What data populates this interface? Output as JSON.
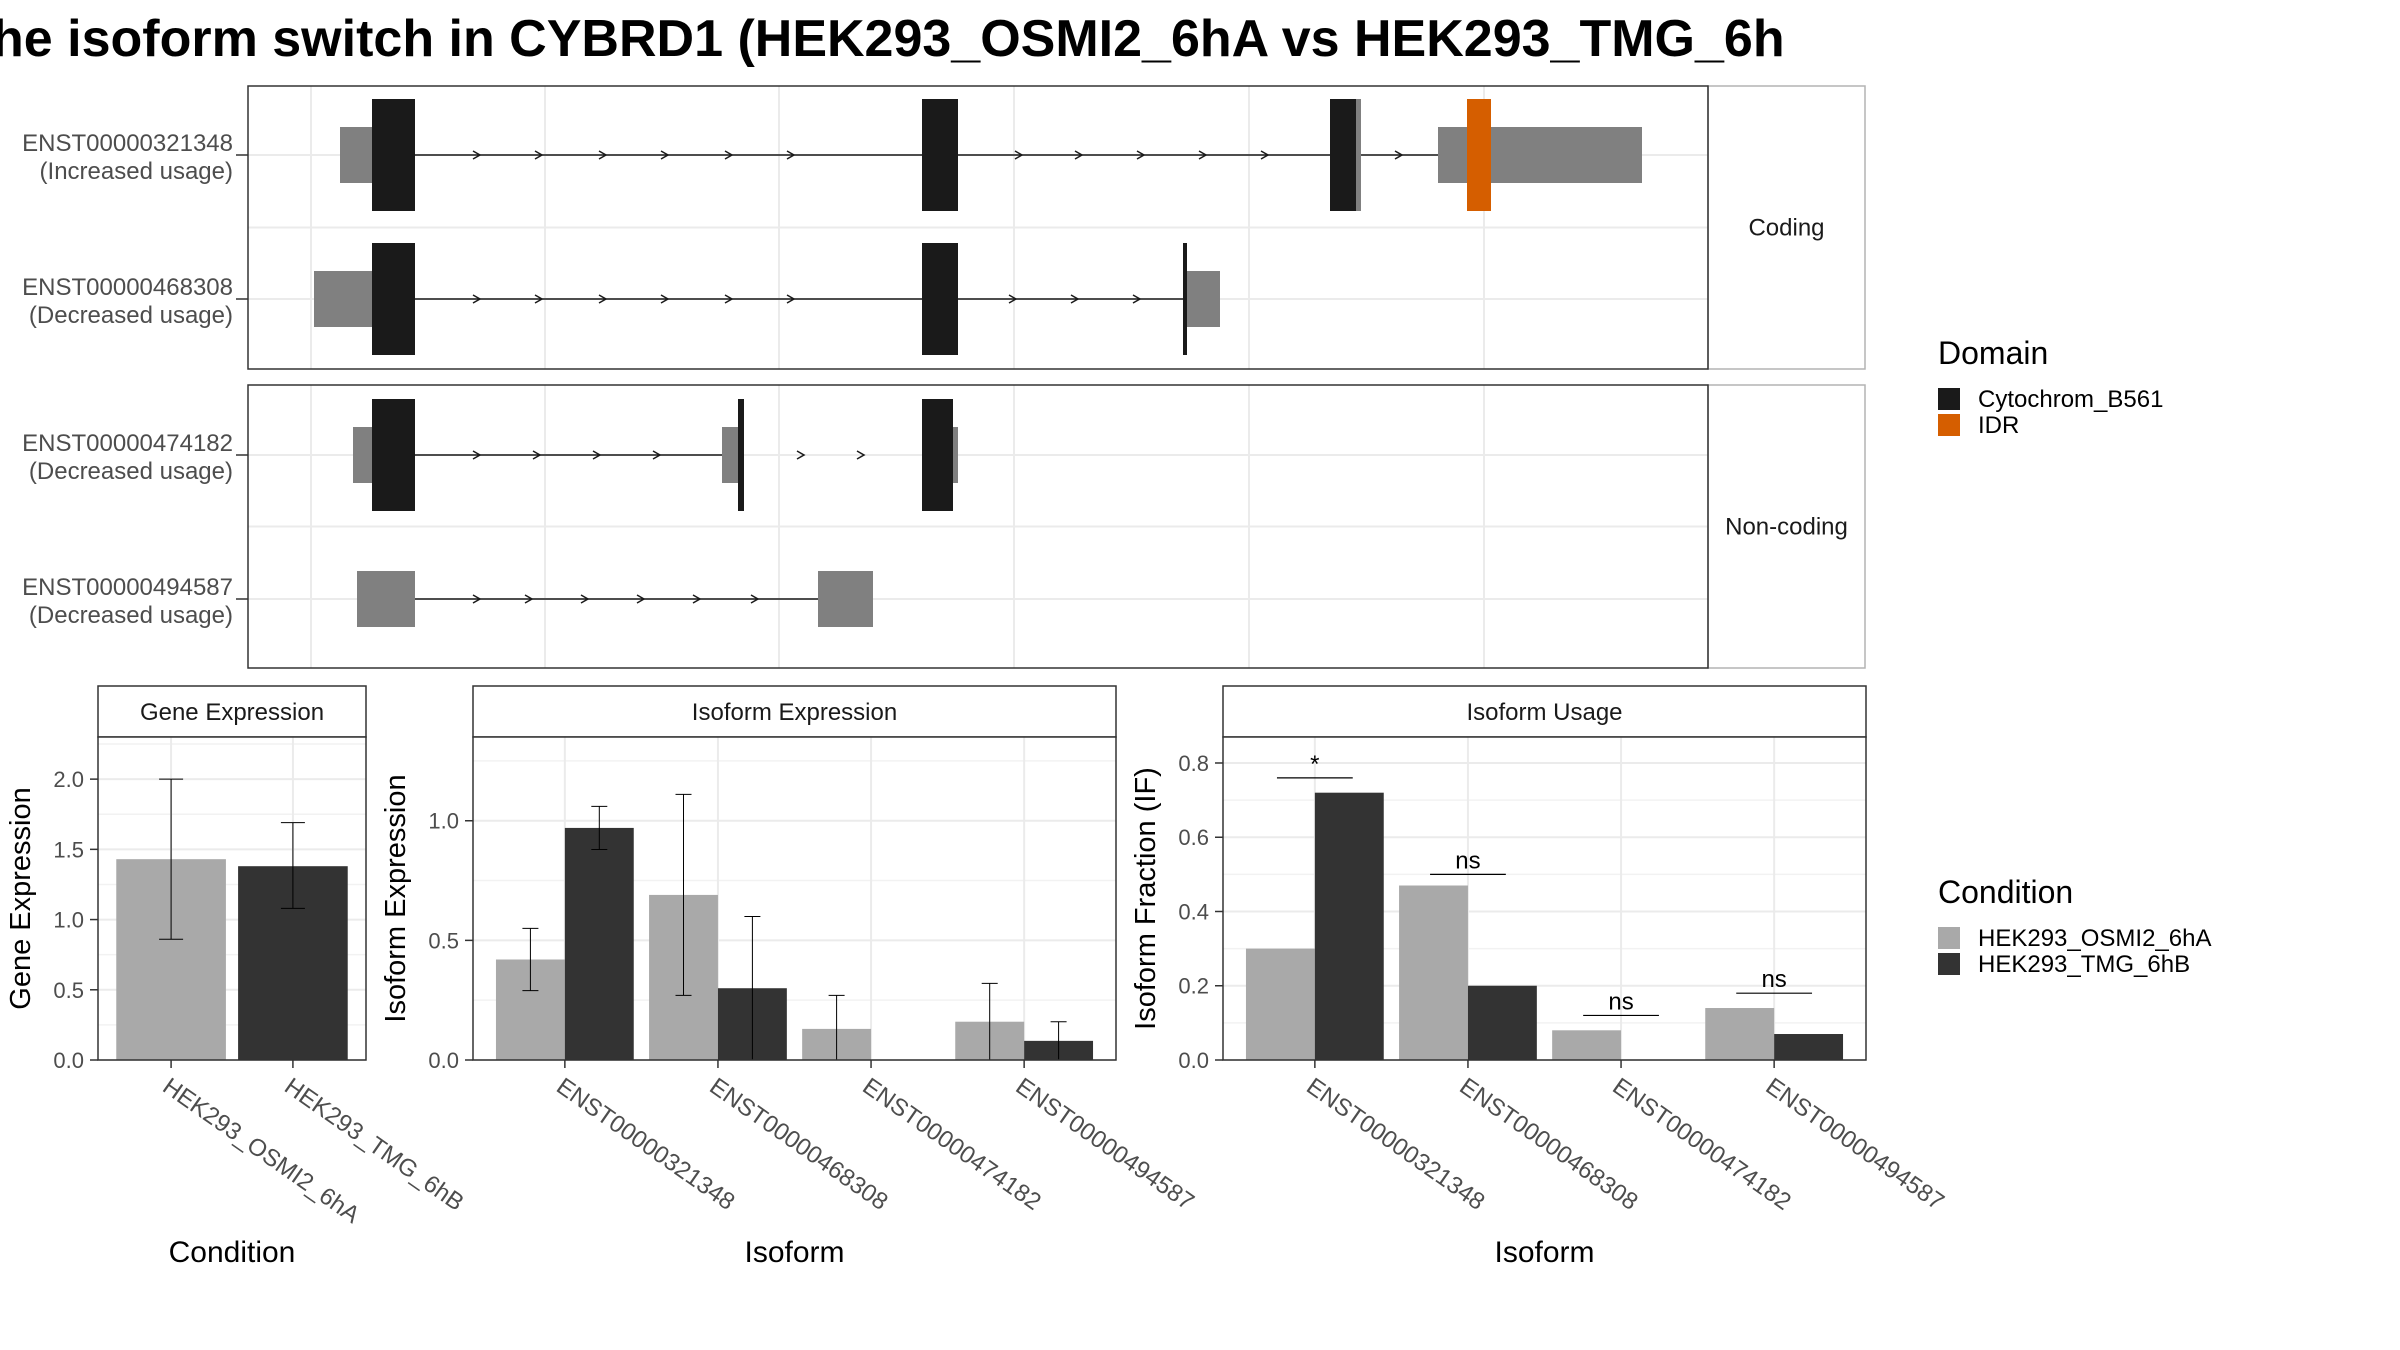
{
  "title": "he isoform switch in CYBRD1 (HEK293_OSMI2_6hA vs HEK293_TMG_6h",
  "colors": {
    "exon": "#808080",
    "cytochrom": "#1a1a1a",
    "idr": "#d55e00",
    "cond1": "#a9a9a9",
    "cond2": "#333333",
    "strip": "#ffffff",
    "grid": "#ebebeb"
  },
  "legend_domain": {
    "title": "Domain",
    "items": [
      {
        "label": "Cytochrom_B561",
        "color": "#1a1a1a"
      },
      {
        "label": "IDR",
        "color": "#d55e00"
      }
    ]
  },
  "legend_condition": {
    "title": "Condition",
    "items": [
      {
        "label": "HEK293_OSMI2_6hA",
        "color": "#a9a9a9"
      },
      {
        "label": "HEK293_TMG_6hB",
        "color": "#333333"
      }
    ]
  },
  "transcript_panels": [
    {
      "strip": "Coding",
      "transcripts": [
        {
          "id": "ENST00000321348",
          "usage": "(Increased usage)"
        },
        {
          "id": "ENST00000468308",
          "usage": "(Decreased usage)"
        }
      ]
    },
    {
      "strip": "Non-coding",
      "transcripts": [
        {
          "id": "ENST00000474182",
          "usage": "(Decreased usage)"
        },
        {
          "id": "ENST00000494587",
          "usage": "(Decreased usage)"
        }
      ]
    }
  ],
  "chart_data": [
    {
      "type": "bar",
      "title": "Gene Expression",
      "xlabel": "Condition",
      "ylabel": "Gene Expression",
      "ylim": [
        0,
        2.3
      ],
      "yticks": [
        "0.0",
        "0.5",
        "1.0",
        "1.5",
        "2.0"
      ],
      "categories": [
        "HEK293_OSMI2_6hA",
        "HEK293_TMG_6hB"
      ],
      "values": [
        1.43,
        1.38
      ],
      "errors": [
        [
          0.86,
          2.0
        ],
        [
          1.08,
          1.69
        ]
      ]
    },
    {
      "type": "bar",
      "title": "Isoform Expression",
      "xlabel": "Isoform",
      "ylabel": "Isoform Expression",
      "ylim": [
        0,
        1.35
      ],
      "yticks": [
        "0.0",
        "0.5",
        "1.0"
      ],
      "categories": [
        "ENST00000321348",
        "ENST00000468308",
        "ENST00000474182",
        "ENST00000494587"
      ],
      "series": [
        {
          "name": "HEK293_OSMI2_6hA",
          "values": [
            0.42,
            0.69,
            0.13,
            0.16
          ],
          "errors": [
            [
              0.29,
              0.55
            ],
            [
              0.27,
              1.11
            ],
            [
              0.0,
              0.27
            ],
            [
              0.0,
              0.32
            ]
          ]
        },
        {
          "name": "HEK293_TMG_6hB",
          "values": [
            0.97,
            0.3,
            0.0,
            0.08
          ],
          "errors": [
            [
              0.88,
              1.06
            ],
            [
              0.0,
              0.6
            ],
            [
              0.0,
              0.0
            ],
            [
              0.0,
              0.16
            ]
          ]
        }
      ]
    },
    {
      "type": "bar",
      "title": "Isoform Usage",
      "xlabel": "Isoform",
      "ylabel": "Isoform Fraction (IF)",
      "ylim": [
        0,
        0.87
      ],
      "yticks": [
        "0.0",
        "0.2",
        "0.4",
        "0.6",
        "0.8"
      ],
      "categories": [
        "ENST00000321348",
        "ENST00000468308",
        "ENST00000474182",
        "ENST00000494587"
      ],
      "series": [
        {
          "name": "HEK293_OSMI2_6hA",
          "values": [
            0.3,
            0.47,
            0.08,
            0.14
          ]
        },
        {
          "name": "HEK293_TMG_6hB",
          "values": [
            0.72,
            0.2,
            0.0,
            0.07
          ]
        }
      ],
      "significance": [
        "*",
        "ns",
        "ns",
        "ns"
      ],
      "significance_level": [
        0.76,
        0.5,
        0.12,
        0.18
      ]
    }
  ]
}
